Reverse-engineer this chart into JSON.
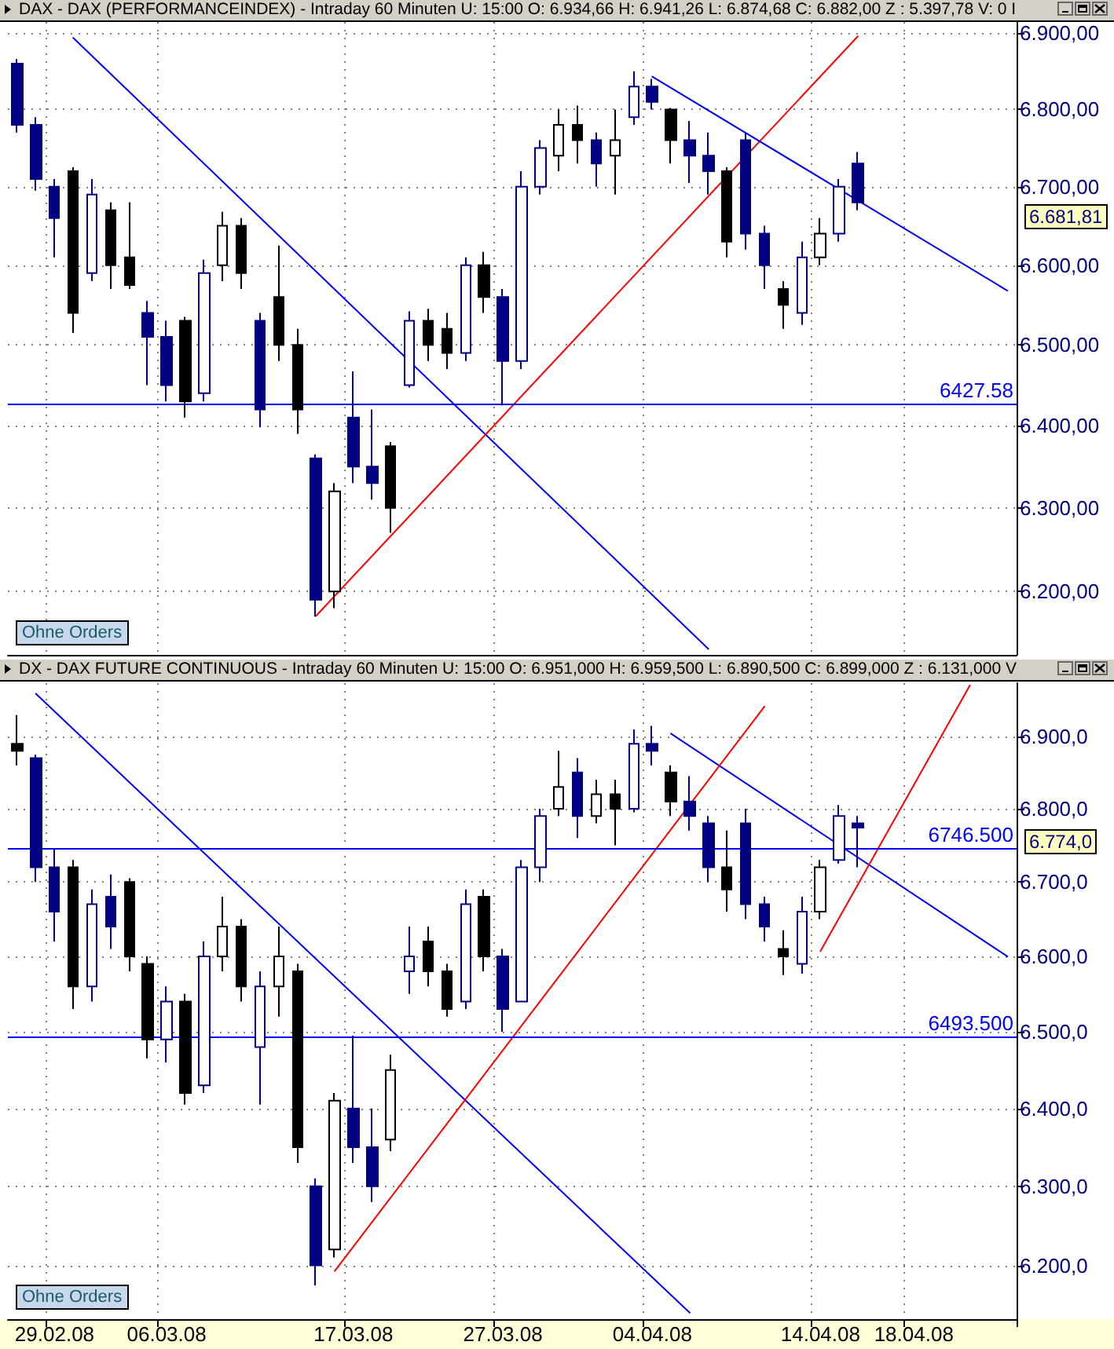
{
  "chart_data": [
    {
      "type": "candlestick",
      "title": "DAX - DAX (PERFORMANCEINDEX) - Intraday 60 Minuten  U: 15:00  O: 6.934,66  H: 6.941,26  L: 6.874,68  C: 6.882,00  Z : 5.397,78  V: 0  I",
      "categories": [
        null,
        null,
        "29.02.08",
        null,
        null,
        null,
        null,
        null,
        "06.03.08",
        null,
        null,
        null,
        null,
        null,
        null,
        null,
        null,
        null,
        "17.03.08",
        null,
        null,
        null,
        null,
        null,
        null,
        null,
        "27.03.08",
        null,
        null,
        null,
        null,
        null,
        null,
        null,
        "04.04.08",
        null,
        null,
        null,
        null,
        null,
        null,
        null,
        null,
        "14.04.08",
        null,
        null,
        null,
        null,
        "18.04.08",
        null,
        null,
        null,
        null,
        null
      ],
      "tick_labels": "y",
      "log": true,
      "grid": true,
      "ylim": [
        6125,
        6915
      ],
      "yticks": [
        {
          "value": 6200,
          "label": "6.200,00"
        },
        {
          "value": 6300,
          "label": "6.300,00"
        },
        {
          "value": 6400,
          "label": "6.400,00"
        },
        {
          "value": 6500,
          "label": "6.500,00"
        },
        {
          "value": 6600,
          "label": "6.600,00"
        },
        {
          "value": 6700,
          "label": "6.700,00"
        },
        {
          "value": 6800,
          "label": "6.800,00"
        },
        {
          "value": 6900,
          "label": "6.900,00"
        }
      ],
      "ohlc": [
        [
          6860,
          6866,
          6770,
          6780
        ],
        [
          6780,
          6790,
          6695,
          6710
        ],
        [
          6700,
          6710,
          6610,
          6660
        ],
        [
          6720,
          6725,
          6515,
          6540
        ],
        [
          6590,
          6710,
          6580,
          6690
        ],
        [
          6670,
          6680,
          6570,
          6600
        ],
        [
          6610,
          6680,
          6570,
          6575
        ],
        [
          6540,
          6555,
          6450,
          6510
        ],
        [
          6510,
          6530,
          6430,
          6450
        ],
        [
          6530,
          6535,
          6410,
          6430
        ],
        [
          6440,
          6607,
          6430,
          6590
        ],
        [
          6600,
          6668,
          6580,
          6650
        ],
        [
          6650,
          6660,
          6570,
          6590
        ],
        [
          6530,
          6540,
          6398,
          6420
        ],
        [
          6560,
          6625,
          6480,
          6500
        ],
        [
          6500,
          6520,
          6390,
          6420
        ],
        [
          6360,
          6365,
          6170,
          6190
        ],
        [
          6200,
          6330,
          6180,
          6320
        ],
        [
          6410,
          6467,
          6330,
          6350
        ],
        [
          6350,
          6420,
          6310,
          6330
        ],
        [
          6375,
          6380,
          6270,
          6300
        ],
        [
          6450,
          6542,
          6447,
          6530
        ],
        [
          6530,
          6545,
          6480,
          6500
        ],
        [
          6520,
          6540,
          6470,
          6490
        ],
        [
          6490,
          6610,
          6480,
          6600
        ],
        [
          6600,
          6617,
          6540,
          6560
        ],
        [
          6560,
          6570,
          6425,
          6480
        ],
        [
          6480,
          6720,
          6470,
          6700
        ],
        [
          6700,
          6760,
          6690,
          6750
        ],
        [
          6740,
          6800,
          6720,
          6780
        ],
        [
          6780,
          6805,
          6730,
          6760
        ],
        [
          6760,
          6770,
          6700,
          6730
        ],
        [
          6740,
          6800,
          6690,
          6760
        ],
        [
          6790,
          6850,
          6780,
          6830
        ],
        [
          6830,
          6840,
          6800,
          6810
        ],
        [
          6800,
          6802,
          6730,
          6760
        ],
        [
          6760,
          6785,
          6705,
          6740
        ],
        [
          6740,
          6770,
          6690,
          6720
        ],
        [
          6720,
          6725,
          6610,
          6630
        ],
        [
          6760,
          6770,
          6620,
          6640
        ],
        [
          6640,
          6650,
          6570,
          6600
        ],
        [
          6570,
          6580,
          6520,
          6550
        ],
        [
          6540,
          6630,
          6525,
          6610
        ],
        [
          6610,
          6660,
          6600,
          6640
        ],
        [
          6640,
          6710,
          6630,
          6700
        ],
        [
          6730,
          6745,
          6670,
          6680
        ],
        null,
        null,
        null,
        null,
        null,
        null,
        null,
        null
      ],
      "colors": [
        "#000080",
        "#000080",
        "#000080",
        "#000000",
        "#000080",
        "#000000",
        "#000000",
        "#000080",
        "#000080",
        "#000000",
        "#000080",
        "#000000",
        "#000000",
        "#000080",
        "#000000",
        "#000000",
        "#000080",
        "#000000",
        "#000080",
        "#000080",
        "#000000",
        "#000080",
        "#000000",
        "#000000",
        "#000080",
        "#000000",
        "#000080",
        "#000080",
        "#000080",
        "#000000",
        "#000000",
        "#000080",
        "#000000",
        "#000080",
        "#000080",
        "#000000",
        "#000080",
        "#000080",
        "#000000",
        "#000080",
        "#000080",
        "#000000",
        "#000080",
        "#000000",
        "#000080",
        "#000080",
        null,
        null,
        null,
        null,
        null,
        null,
        null,
        null
      ],
      "series": [
        {
          "type": "line",
          "color": "#0000ff",
          "values": [
            null,
            null,
            null,
            6894,
            null,
            null,
            null,
            null,
            null,
            null,
            null,
            null,
            null,
            null,
            null,
            null,
            null,
            null,
            null,
            null,
            null,
            null,
            null,
            null,
            null,
            null,
            null,
            null,
            null,
            null,
            null,
            null,
            null,
            null,
            null,
            null,
            null,
            6132,
            null,
            null,
            null,
            null,
            null,
            null,
            null,
            null,
            null,
            null,
            null,
            null,
            null,
            null,
            null,
            null
          ]
        },
        {
          "type": "line",
          "color": "#ff0000",
          "values": [
            null,
            null,
            null,
            null,
            null,
            null,
            null,
            null,
            null,
            null,
            null,
            null,
            null,
            null,
            null,
            null,
            6171,
            null,
            null,
            null,
            null,
            null,
            null,
            null,
            null,
            null,
            null,
            null,
            null,
            null,
            null,
            null,
            null,
            null,
            null,
            null,
            null,
            null,
            null,
            null,
            null,
            null,
            null,
            null,
            null,
            6896,
            null,
            null,
            null,
            null,
            null,
            null,
            null,
            null
          ]
        },
        {
          "type": "line",
          "color": "#0000ff",
          "values": [
            null,
            null,
            null,
            null,
            null,
            null,
            null,
            null,
            null,
            null,
            null,
            null,
            null,
            null,
            null,
            null,
            null,
            null,
            null,
            null,
            null,
            null,
            null,
            null,
            null,
            null,
            null,
            null,
            null,
            null,
            null,
            null,
            null,
            null,
            6843,
            null,
            null,
            null,
            null,
            null,
            null,
            null,
            null,
            null,
            null,
            null,
            null,
            null,
            null,
            null,
            null,
            null,
            null,
            6568
          ]
        }
      ],
      "ref_lines": [
        {
          "axis": "y",
          "value": 6427.58,
          "label": "6427.58",
          "color": "#0000ff"
        }
      ],
      "annotations": [
        "Ohne Orders",
        "6.681,81"
      ]
    },
    {
      "type": "candlestick",
      "title": "DX - DAX FUTURE CONTINUOUS - Intraday 60 Minuten  U: 15:00  O: 6.951,000  H: 6.959,500  L: 6.890,500  C: 6.899,000  Z : 6.131,000  V",
      "categories": [
        null,
        null,
        "29.02.08",
        null,
        null,
        null,
        null,
        null,
        "06.03.08",
        null,
        null,
        null,
        null,
        null,
        null,
        null,
        null,
        null,
        "17.03.08",
        null,
        null,
        null,
        null,
        null,
        null,
        null,
        "27.03.08",
        null,
        null,
        null,
        null,
        null,
        null,
        null,
        "04.04.08",
        null,
        null,
        null,
        null,
        null,
        null,
        null,
        null,
        "14.04.08",
        null,
        null,
        null,
        null,
        "18.04.08",
        null,
        null,
        null,
        null,
        null
      ],
      "log": true,
      "grid": true,
      "ylim": [
        6133,
        6975
      ],
      "yticks": [
        {
          "value": 6200,
          "label": "6.200,0"
        },
        {
          "value": 6300,
          "label": "6.300,0"
        },
        {
          "value": 6400,
          "label": "6.400,0"
        },
        {
          "value": 6500,
          "label": "6.500,0"
        },
        {
          "value": 6600,
          "label": "6.600,0"
        },
        {
          "value": 6700,
          "label": "6.700,0"
        },
        {
          "value": 6800,
          "label": "6.800,0"
        },
        {
          "value": 6900,
          "label": "6.900,0"
        }
      ],
      "ohlc": [
        [
          6890,
          6930,
          6860,
          6880
        ],
        [
          6870,
          6875,
          6700,
          6720
        ],
        [
          6720,
          6745,
          6620,
          6660
        ],
        [
          6720,
          6730,
          6530,
          6560
        ],
        [
          6560,
          6690,
          6540,
          6670
        ],
        [
          6680,
          6710,
          6610,
          6640
        ],
        [
          6700,
          6705,
          6580,
          6600
        ],
        [
          6590,
          6600,
          6465,
          6490
        ],
        [
          6490,
          6560,
          6460,
          6540
        ],
        [
          6540,
          6550,
          6405,
          6420
        ],
        [
          6430,
          6620,
          6420,
          6600
        ],
        [
          6600,
          6680,
          6580,
          6640
        ],
        [
          6640,
          6650,
          6540,
          6560
        ],
        [
          6480,
          6580,
          6405,
          6560
        ],
        [
          6560,
          6640,
          6520,
          6600
        ],
        [
          6580,
          6590,
          6330,
          6350
        ],
        [
          6300,
          6310,
          6175,
          6200
        ],
        [
          6220,
          6420,
          6210,
          6410
        ],
        [
          6400,
          6495,
          6330,
          6350
        ],
        [
          6350,
          6400,
          6280,
          6300
        ],
        [
          6360,
          6470,
          6345,
          6450
        ],
        [
          6580,
          6640,
          6550,
          6600
        ],
        [
          6620,
          6640,
          6560,
          6580
        ],
        [
          6580,
          6590,
          6520,
          6530
        ],
        [
          6540,
          6690,
          6530,
          6670
        ],
        [
          6680,
          6690,
          6580,
          6600
        ],
        [
          6600,
          6610,
          6500,
          6530
        ],
        [
          6540,
          6730,
          6540,
          6720
        ],
        [
          6720,
          6800,
          6700,
          6790
        ],
        [
          6800,
          6880,
          6790,
          6830
        ],
        [
          6850,
          6870,
          6760,
          6790
        ],
        [
          6790,
          6840,
          6780,
          6820
        ],
        [
          6820,
          6840,
          6750,
          6800
        ],
        [
          6800,
          6910,
          6795,
          6890
        ],
        [
          6890,
          6915,
          6860,
          6880
        ],
        [
          6850,
          6860,
          6790,
          6810
        ],
        [
          6810,
          6845,
          6770,
          6790
        ],
        [
          6780,
          6790,
          6700,
          6720
        ],
        [
          6720,
          6770,
          6660,
          6690
        ],
        [
          6780,
          6800,
          6650,
          6670
        ],
        [
          6670,
          6680,
          6620,
          6640
        ],
        [
          6610,
          6635,
          6575,
          6600
        ],
        [
          6590,
          6680,
          6577,
          6660
        ],
        [
          6660,
          6730,
          6650,
          6720
        ],
        [
          6730,
          6805,
          6725,
          6790
        ],
        [
          6780,
          6790,
          6720,
          6774
        ],
        null,
        null,
        null,
        null,
        null,
        null,
        null,
        null
      ],
      "colors": [
        "#000000",
        "#000080",
        "#000080",
        "#000000",
        "#000080",
        "#000080",
        "#000000",
        "#000000",
        "#000080",
        "#000000",
        "#000080",
        "#000000",
        "#000000",
        "#000080",
        "#000000",
        "#000000",
        "#000080",
        "#000000",
        "#000080",
        "#000080",
        "#000000",
        "#000080",
        "#000000",
        "#000000",
        "#000080",
        "#000000",
        "#000080",
        "#000080",
        "#000080",
        "#000000",
        "#000080",
        "#000000",
        "#000000",
        "#000080",
        "#000080",
        "#000000",
        "#000080",
        "#000080",
        "#000000",
        "#000080",
        "#000080",
        "#000000",
        "#000080",
        "#000000",
        "#000080",
        "#000080",
        null,
        null,
        null,
        null,
        null,
        null,
        null,
        null
      ],
      "series": [
        {
          "type": "line",
          "color": "#0000ff",
          "values": [
            null,
            6960,
            null,
            null,
            null,
            null,
            null,
            null,
            null,
            null,
            null,
            null,
            null,
            null,
            null,
            null,
            null,
            null,
            null,
            null,
            null,
            null,
            null,
            null,
            null,
            null,
            null,
            null,
            null,
            null,
            null,
            null,
            null,
            null,
            null,
            null,
            6141,
            null,
            null,
            null,
            null,
            null,
            null,
            null,
            null,
            null,
            null,
            null,
            null,
            null,
            null,
            null,
            null,
            null
          ]
        },
        {
          "type": "line",
          "color": "#0000ff",
          "values": [
            null,
            null,
            null,
            null,
            null,
            null,
            null,
            null,
            null,
            null,
            null,
            null,
            null,
            null,
            null,
            null,
            null,
            null,
            null,
            null,
            null,
            null,
            null,
            null,
            null,
            null,
            null,
            null,
            null,
            null,
            null,
            null,
            null,
            null,
            null,
            6904,
            null,
            null,
            null,
            null,
            null,
            null,
            null,
            null,
            null,
            null,
            null,
            null,
            null,
            null,
            null,
            null,
            null,
            6600
          ]
        },
        {
          "type": "line",
          "color": "#ff0000",
          "values": [
            null,
            null,
            null,
            null,
            null,
            null,
            null,
            null,
            null,
            null,
            null,
            null,
            null,
            null,
            null,
            null,
            null,
            6193,
            null,
            null,
            null,
            null,
            null,
            null,
            null,
            null,
            null,
            null,
            null,
            null,
            null,
            null,
            null,
            null,
            null,
            null,
            null,
            null,
            null,
            null,
            6942,
            null,
            null,
            null,
            null,
            null,
            null,
            null,
            null,
            null,
            null,
            null,
            null,
            null
          ]
        },
        {
          "type": "line",
          "color": "#ff0000",
          "values": [
            null,
            null,
            null,
            null,
            null,
            null,
            null,
            null,
            null,
            null,
            null,
            null,
            null,
            null,
            null,
            null,
            null,
            null,
            null,
            null,
            null,
            null,
            null,
            null,
            null,
            null,
            null,
            null,
            null,
            null,
            null,
            null,
            null,
            null,
            null,
            null,
            null,
            null,
            null,
            null,
            null,
            null,
            null,
            6607,
            null,
            null,
            null,
            null,
            null,
            null,
            null,
            6972,
            null,
            null
          ]
        }
      ],
      "ref_lines": [
        {
          "axis": "y",
          "value": 6746.5,
          "label": "6746.500",
          "color": "#0000ff"
        },
        {
          "axis": "y",
          "value": 6493.5,
          "label": "6493.500",
          "color": "#0000ff"
        }
      ],
      "annotations": [
        "Ohne Orders",
        "6.774,0"
      ]
    }
  ]
}
